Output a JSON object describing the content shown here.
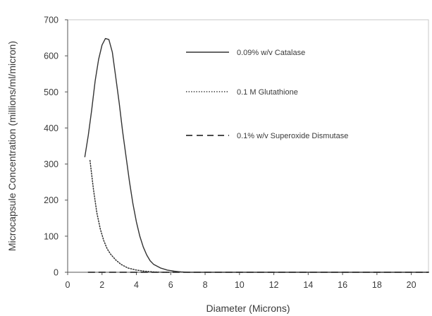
{
  "chart_data": {
    "type": "line",
    "title": "",
    "xlabel": "Diameter (Microns)",
    "ylabel": "Microcapsule Concentration  (millions/ml/micron)",
    "xlim": [
      0,
      21
    ],
    "ylim": [
      0,
      700
    ],
    "x_ticks": [
      "0",
      "2",
      "4",
      "6",
      "8",
      "10",
      "12",
      "14",
      "16",
      "18",
      "20"
    ],
    "y_ticks": [
      "0",
      "100",
      "200",
      "300",
      "400",
      "500",
      "600",
      "700"
    ],
    "grid": false,
    "legend_position": "top-right",
    "colors": {
      "axis": "#555555",
      "series": "#333333"
    },
    "series": [
      {
        "name": "0.09% w/v Catalase",
        "style": "solid",
        "x": [
          1.0,
          1.2,
          1.4,
          1.6,
          1.8,
          2.0,
          2.2,
          2.4,
          2.6,
          2.8,
          3.0,
          3.2,
          3.4,
          3.6,
          3.8,
          4.0,
          4.2,
          4.4,
          4.6,
          4.8,
          5.0,
          5.4,
          5.8,
          6.2,
          6.6,
          7.0,
          8.0,
          10.0,
          14.0,
          21.0
        ],
        "y": [
          320,
          380,
          450,
          530,
          590,
          630,
          648,
          645,
          610,
          540,
          470,
          390,
          320,
          250,
          190,
          140,
          100,
          70,
          48,
          32,
          22,
          12,
          6,
          3,
          1,
          0,
          0,
          0,
          0,
          0
        ]
      },
      {
        "name": "0.1 M Glutathione",
        "style": "dotted",
        "x": [
          1.3,
          1.5,
          1.7,
          1.9,
          2.1,
          2.3,
          2.5,
          2.8,
          3.1,
          3.5,
          4.0,
          4.5,
          5.0,
          5.5,
          6.0
        ],
        "y": [
          310,
          230,
          165,
          120,
          88,
          65,
          50,
          34,
          22,
          12,
          6,
          3,
          1,
          0,
          0
        ]
      },
      {
        "name": "0.1% w/v Superoxide Dismutase",
        "style": "dashed",
        "x": [
          1.2,
          2.0,
          4.0,
          6.0,
          10.0,
          14.0,
          18.0,
          21.0
        ],
        "y": [
          0,
          0,
          0,
          0,
          0,
          0,
          0,
          0
        ]
      }
    ]
  }
}
